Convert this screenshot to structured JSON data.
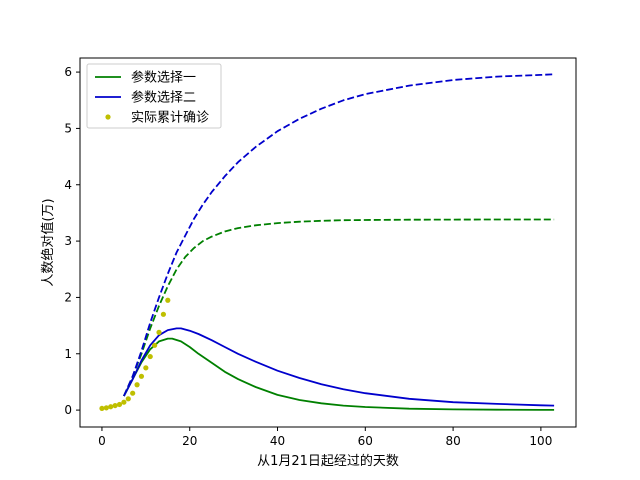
{
  "chart_data": {
    "type": "line",
    "title": "",
    "xlabel": "从1月21日起经过的天数",
    "ylabel": "人数绝对值(万)",
    "xlim": [
      -5,
      108
    ],
    "ylim": [
      -0.3,
      6.25
    ],
    "xticks": [
      0,
      20,
      40,
      60,
      80,
      100
    ],
    "yticks": [
      0,
      1,
      2,
      3,
      4,
      5,
      6
    ],
    "grid": false,
    "legend_position": "top-left",
    "series": [
      {
        "name": "参数选择一",
        "color": "#008000",
        "style": "solid",
        "x": [
          5,
          7,
          9,
          11,
          13,
          15,
          16,
          18,
          20,
          22,
          25,
          28,
          31,
          35,
          40,
          45,
          50,
          55,
          60,
          70,
          80,
          90,
          100,
          103
        ],
        "y": [
          0.25,
          0.55,
          0.85,
          1.08,
          1.22,
          1.27,
          1.27,
          1.22,
          1.12,
          1.0,
          0.84,
          0.68,
          0.55,
          0.41,
          0.27,
          0.18,
          0.12,
          0.08,
          0.055,
          0.025,
          0.012,
          0.007,
          0.004,
          0.003
        ]
      },
      {
        "name": "参数选择二",
        "color": "#0000cc",
        "style": "solid",
        "x": [
          5,
          7,
          9,
          11,
          13,
          15,
          17,
          18,
          20,
          22,
          25,
          28,
          31,
          35,
          40,
          45,
          50,
          55,
          60,
          70,
          80,
          90,
          100,
          103
        ],
        "y": [
          0.25,
          0.55,
          0.88,
          1.15,
          1.33,
          1.42,
          1.45,
          1.45,
          1.41,
          1.35,
          1.24,
          1.12,
          1.0,
          0.86,
          0.7,
          0.57,
          0.46,
          0.37,
          0.3,
          0.2,
          0.14,
          0.11,
          0.085,
          0.08
        ]
      },
      {
        "name": "",
        "color": "#008000",
        "style": "dashed",
        "x": [
          5,
          7,
          9,
          11,
          13,
          15,
          17,
          19,
          21,
          23,
          25,
          28,
          31,
          35,
          40,
          45,
          50,
          55,
          60,
          70,
          80,
          90,
          100,
          103
        ],
        "y": [
          0.25,
          0.6,
          1.0,
          1.45,
          1.85,
          2.2,
          2.5,
          2.72,
          2.88,
          3.0,
          3.08,
          3.17,
          3.23,
          3.28,
          3.32,
          3.345,
          3.36,
          3.37,
          3.375,
          3.38,
          3.382,
          3.383,
          3.384,
          3.384
        ]
      },
      {
        "name": "",
        "color": "#0000cc",
        "style": "dashed",
        "x": [
          5,
          7,
          9,
          11,
          13,
          15,
          17,
          19,
          21,
          23,
          25,
          28,
          31,
          35,
          40,
          45,
          50,
          55,
          60,
          70,
          80,
          90,
          100,
          103
        ],
        "y": [
          0.25,
          0.6,
          1.05,
          1.55,
          2.0,
          2.42,
          2.8,
          3.1,
          3.4,
          3.65,
          3.87,
          4.15,
          4.4,
          4.67,
          4.95,
          5.17,
          5.35,
          5.5,
          5.61,
          5.76,
          5.86,
          5.92,
          5.95,
          5.96
        ]
      }
    ],
    "scatter": {
      "name": "实际累计确诊",
      "color": "#bfbf00",
      "x": [
        0,
        1,
        2,
        3,
        4,
        5,
        6,
        7,
        8,
        9,
        10,
        11,
        12,
        13,
        14,
        15
      ],
      "y": [
        0.03,
        0.04,
        0.06,
        0.08,
        0.1,
        0.14,
        0.2,
        0.3,
        0.45,
        0.6,
        0.75,
        0.95,
        1.15,
        1.38,
        1.7,
        1.95
      ]
    }
  }
}
